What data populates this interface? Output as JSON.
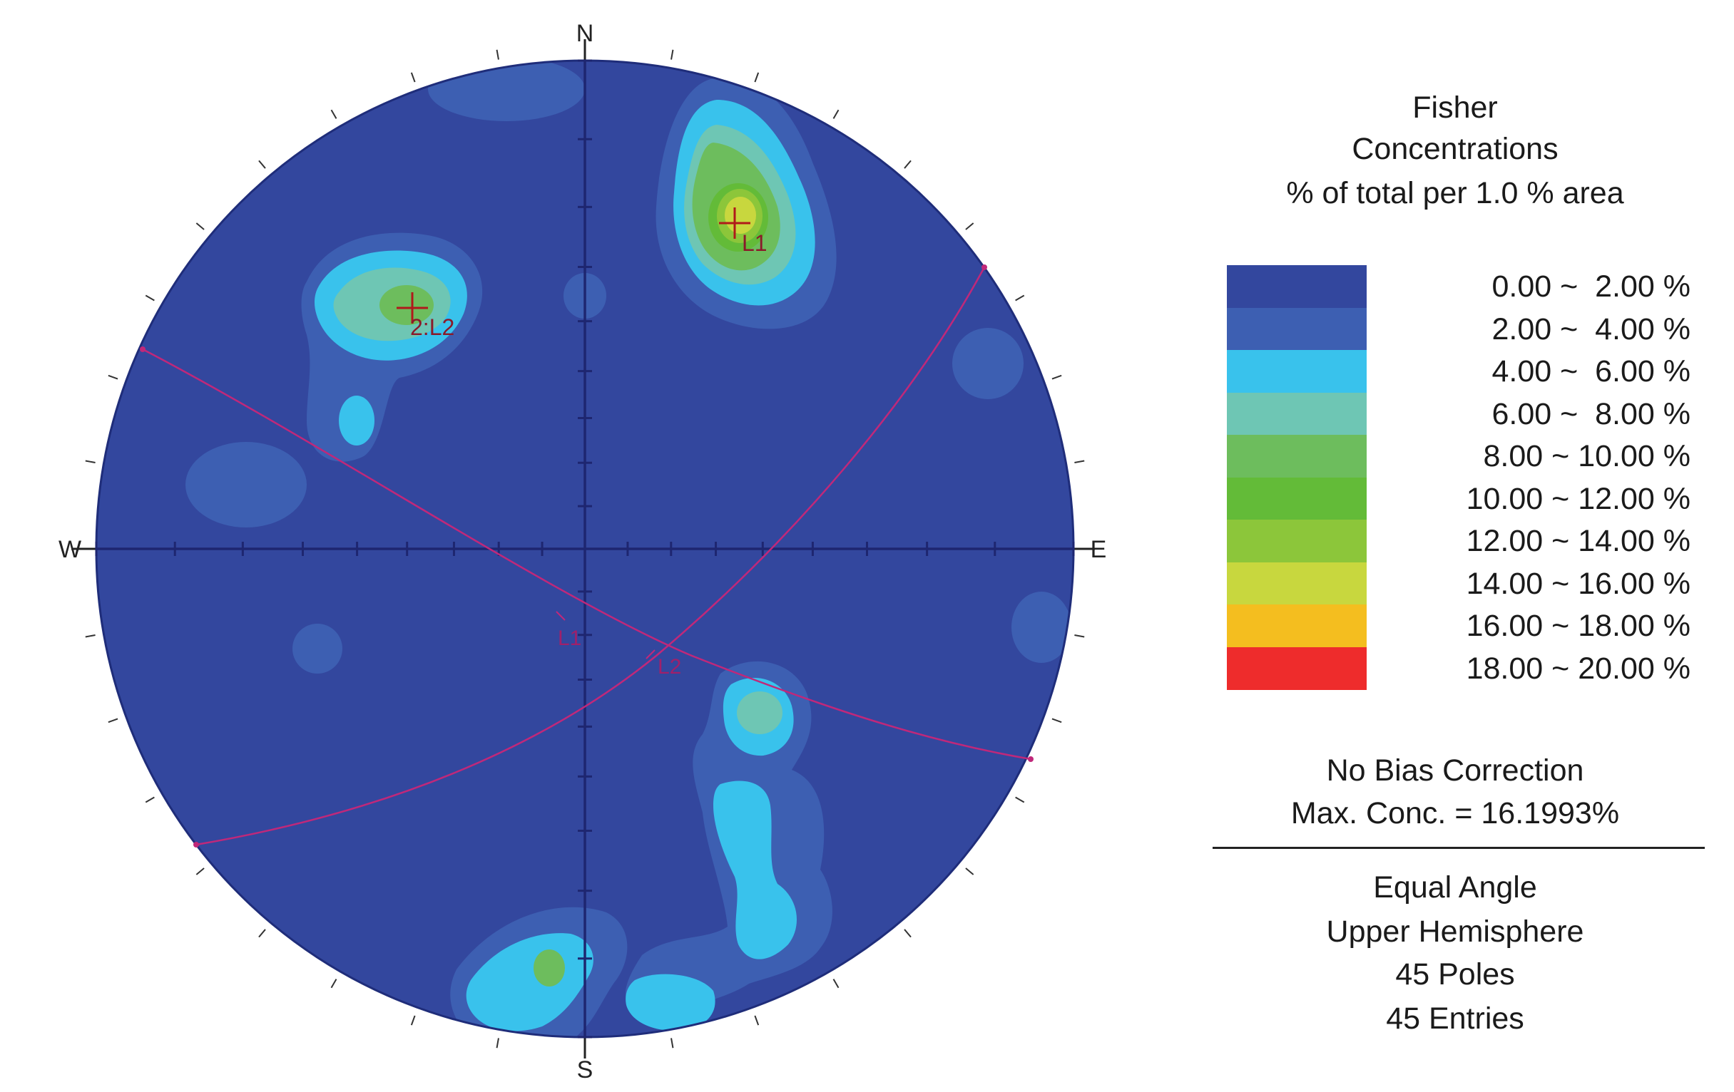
{
  "chart_data": {
    "type": "stereonet",
    "projection": "Equal Angle",
    "hemisphere": "Upper Hemisphere",
    "directions": {
      "north": "N",
      "south": "S",
      "east": "E",
      "west": "W"
    },
    "legend": {
      "title_lines": [
        "Fisher",
        "Concentrations",
        "% of total per 1.0 % area"
      ],
      "bins": [
        {
          "range": "0.00 ~  2.00 %",
          "color": "#33479e"
        },
        {
          "range": "2.00 ~  4.00 %",
          "color": "#3d5fb2"
        },
        {
          "range": "4.00 ~  6.00 %",
          "color": "#39c2ec"
        },
        {
          "range": "6.00 ~  8.00 %",
          "color": "#6ec6b4"
        },
        {
          "range": "8.00 ~ 10.00 %",
          "color": "#6dbd5d"
        },
        {
          "range": "10.00 ~ 12.00 %",
          "color": "#63bb38"
        },
        {
          "range": "12.00 ~ 14.00 %",
          "color": "#8cc63a"
        },
        {
          "range": "14.00 ~ 16.00 %",
          "color": "#c8d73e"
        },
        {
          "range": "16.00 ~ 18.00 %",
          "color": "#f4be1f"
        },
        {
          "range": "18.00 ~ 20.00 %",
          "color": "#ee2c2c"
        }
      ]
    },
    "info": {
      "bias": "No Bias Correction",
      "max_conc": "Max. Conc. = 16.1993%",
      "poles": "45 Poles",
      "entries": "45 Entries"
    },
    "set_centers": [
      {
        "label": "L1",
        "pole_label": "L1"
      },
      {
        "label": "2:L2",
        "pole_label": "L2"
      }
    ],
    "max_concentration_percent": 16.1993,
    "pole_count": 45,
    "entry_count": 45
  }
}
